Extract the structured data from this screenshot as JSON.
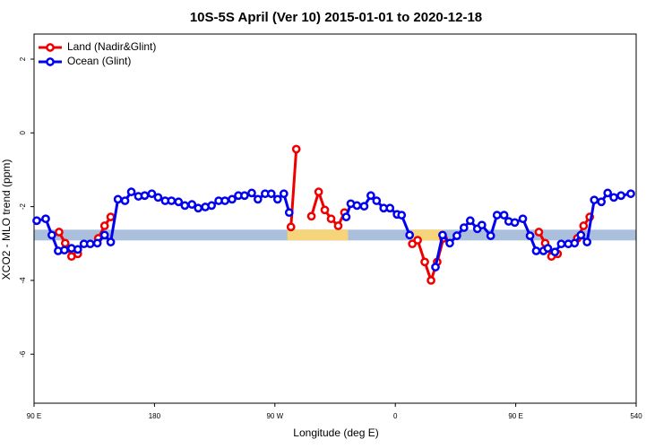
{
  "chart_data": {
    "type": "line",
    "title": "10S-5S April (Ver 10)   2015-01-01 to 2020-12-18",
    "xlabel": "Longitude (deg E)",
    "ylabel": "XCO2 - MLO trend (ppm)",
    "xlim": [
      90,
      540
    ],
    "ylim": [
      -7.33,
      2.68
    ],
    "xticks": [
      {
        "value": 90,
        "label": "90 E"
      },
      180,
      {
        "value": 270,
        "label": "90 W"
      },
      {
        "value": 360,
        "label": "0"
      },
      {
        "value": 450,
        "label": "90 E"
      },
      540
    ],
    "yticks": [
      -6,
      -4,
      -2,
      0,
      2
    ],
    "legend": "top-left",
    "strip_level": -2.77,
    "strip_color": "#a9bfdc",
    "land_color": "#f5d47a",
    "land_ranges": [
      [
        279.3,
        324.7
      ],
      [
        372.7,
        396.7
      ]
    ],
    "series": [
      {
        "name": "Land (Nadir&Glint)",
        "color": "#ee0000",
        "x": [
          108.7,
          113.3,
          118,
          122.7,
          null,
          138,
          142.7,
          147.3,
          null,
          282,
          286,
          null,
          297.3,
          302.7,
          307.3,
          312,
          317.3,
          322,
          null,
          372.7,
          376.7,
          382,
          386.7,
          391.3,
          396,
          null,
          467.3,
          472,
          476.7,
          481.3,
          null,
          496,
          500.7,
          505.3
        ],
        "values": [
          -2.69,
          -2.99,
          -3.35,
          -3.28,
          null,
          -2.86,
          -2.52,
          -2.28,
          null,
          -2.55,
          -0.44,
          null,
          -2.26,
          -1.6,
          -2.09,
          -2.33,
          -2.52,
          -2.16,
          null,
          -3.01,
          -2.91,
          -3.5,
          -4.0,
          -3.5,
          -2.86,
          null,
          -2.69,
          -2.99,
          -3.35,
          -3.28,
          null,
          -2.86,
          -2.52,
          -2.28
        ]
      },
      {
        "name": "Ocean (Glint)",
        "color": "#0000ee",
        "x": [
          92,
          98.7,
          103.3,
          108,
          112.7,
          118,
          122.7,
          127.3,
          132,
          137.3,
          142.7,
          147.3,
          152.7,
          158,
          162.7,
          168,
          172.7,
          178,
          182.7,
          188,
          192.7,
          198,
          202.7,
          208,
          212.7,
          218,
          222.7,
          228,
          232.7,
          238,
          242.7,
          247.3,
          252.7,
          257.3,
          262.7,
          267.3,
          272,
          276.7,
          280.7,
          null,
          323.3,
          326.7,
          331.3,
          336.7,
          341.7,
          346,
          351.3,
          356,
          361.3,
          364.7,
          370.7,
          null,
          390,
          395.3,
          400.7,
          406,
          411.3,
          416,
          421.3,
          424.7,
          431.3,
          436,
          441.3,
          444.7,
          449.3,
          455.3,
          460.7,
          465.3,
          470.7,
          474,
          479.3,
          484,
          489.3,
          494,
          498.7,
          503.3,
          508.7,
          514,
          518.7,
          523.3,
          528.7,
          536
        ],
        "values": [
          -2.38,
          -2.33,
          -2.77,
          -3.2,
          -3.18,
          -3.13,
          -3.16,
          -3.01,
          -3.01,
          -2.99,
          -2.77,
          -2.96,
          -1.8,
          -1.84,
          -1.6,
          -1.72,
          -1.7,
          -1.65,
          -1.75,
          -1.84,
          -1.84,
          -1.87,
          -1.97,
          -1.94,
          -2.04,
          -2.01,
          -1.97,
          -1.84,
          -1.84,
          -1.8,
          -1.7,
          -1.7,
          -1.63,
          -1.8,
          -1.65,
          -1.65,
          -1.8,
          -1.65,
          -2.16,
          null,
          -2.28,
          -1.92,
          -1.97,
          -1.99,
          -1.7,
          -1.84,
          -2.04,
          -2.04,
          -2.21,
          -2.23,
          -2.77,
          null,
          -3.64,
          -2.77,
          -2.99,
          -2.79,
          -2.57,
          -2.38,
          -2.6,
          -2.5,
          -2.79,
          -2.23,
          -2.23,
          -2.4,
          -2.43,
          -2.33,
          -2.79,
          -3.2,
          -3.2,
          -3.13,
          -3.23,
          -3.01,
          -3.01,
          -2.99,
          -2.77,
          -2.96,
          -1.82,
          -1.87,
          -1.63,
          -1.75,
          -1.7,
          -1.65
        ]
      }
    ]
  }
}
